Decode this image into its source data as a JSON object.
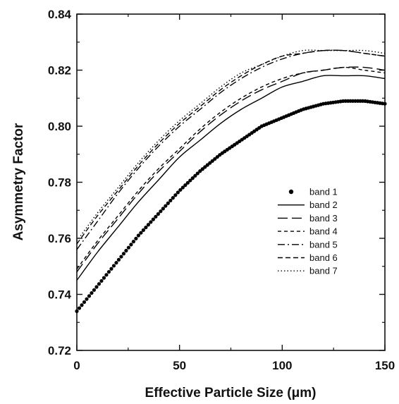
{
  "chart_data": {
    "type": "line",
    "title": "",
    "xlabel": "Effective Particle Size (μm)",
    "ylabel": "Asymmetry Factor",
    "xlim": [
      0,
      150
    ],
    "ylim": [
      0.72,
      0.84
    ],
    "x_ticks": [
      0,
      50,
      100,
      150
    ],
    "x_tick_labels": [
      "0",
      "50",
      "100",
      "150"
    ],
    "y_ticks": [
      0.72,
      0.74,
      0.76,
      0.78,
      0.8,
      0.82,
      0.84
    ],
    "y_tick_labels": [
      "0.72",
      "0.74",
      "0.76",
      "0.78",
      "0.80",
      "0.82",
      "0.84"
    ],
    "grid": false,
    "legend_position": "center-right",
    "x": [
      0,
      10,
      20,
      30,
      40,
      50,
      60,
      70,
      80,
      90,
      100,
      110,
      120,
      130,
      140,
      150
    ],
    "series": [
      {
        "name": "band 1",
        "style": "dots",
        "color": "#000000",
        "values": [
          0.734,
          0.743,
          0.752,
          0.761,
          0.769,
          0.777,
          0.784,
          0.79,
          0.795,
          0.8,
          0.803,
          0.806,
          0.808,
          0.809,
          0.809,
          0.808
        ]
      },
      {
        "name": "band 2",
        "style": "solid",
        "color": "#000000",
        "values": [
          0.745,
          0.755,
          0.764,
          0.773,
          0.781,
          0.789,
          0.795,
          0.801,
          0.806,
          0.81,
          0.814,
          0.816,
          0.818,
          0.818,
          0.818,
          0.817
        ]
      },
      {
        "name": "band 3",
        "style": "long-dash",
        "color": "#000000",
        "values": [
          0.748,
          0.758,
          0.767,
          0.776,
          0.784,
          0.791,
          0.798,
          0.804,
          0.809,
          0.813,
          0.816,
          0.819,
          0.82,
          0.821,
          0.821,
          0.82
        ]
      },
      {
        "name": "band 4",
        "style": "short-dash",
        "color": "#000000",
        "values": [
          0.749,
          0.759,
          0.768,
          0.777,
          0.785,
          0.792,
          0.799,
          0.805,
          0.81,
          0.814,
          0.817,
          0.819,
          0.82,
          0.821,
          0.82,
          0.819
        ]
      },
      {
        "name": "band 5",
        "style": "dash-dot",
        "color": "#000000",
        "values": [
          0.756,
          0.766,
          0.776,
          0.785,
          0.793,
          0.8,
          0.806,
          0.812,
          0.817,
          0.821,
          0.824,
          0.826,
          0.827,
          0.827,
          0.826,
          0.825
        ]
      },
      {
        "name": "band 6",
        "style": "medium-dash",
        "color": "#000000",
        "values": [
          0.758,
          0.768,
          0.777,
          0.786,
          0.794,
          0.801,
          0.807,
          0.813,
          0.818,
          0.822,
          0.825,
          0.826,
          0.827,
          0.827,
          0.826,
          0.825
        ]
      },
      {
        "name": "band 7",
        "style": "dotted",
        "color": "#000000",
        "values": [
          0.759,
          0.769,
          0.778,
          0.787,
          0.795,
          0.802,
          0.808,
          0.814,
          0.819,
          0.822,
          0.825,
          0.827,
          0.827,
          0.827,
          0.827,
          0.826
        ]
      }
    ]
  }
}
